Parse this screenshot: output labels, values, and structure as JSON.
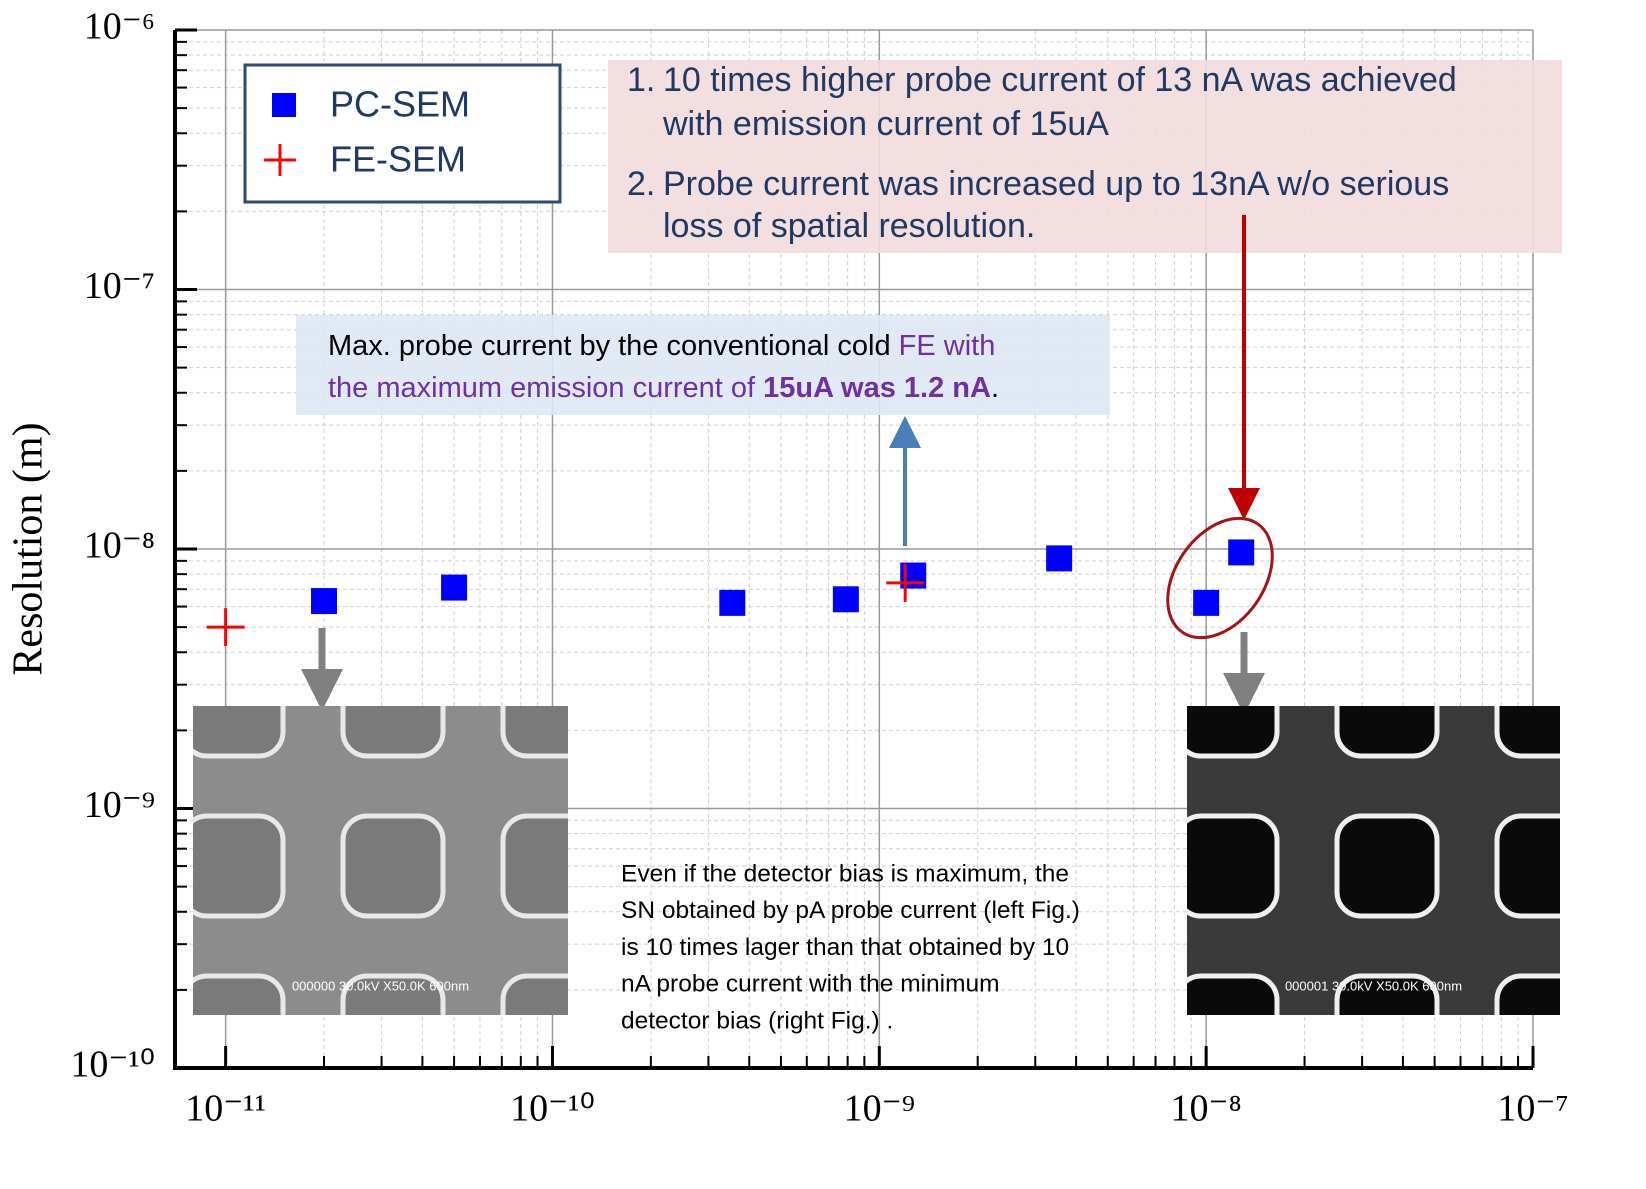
{
  "chart_data": {
    "type": "scatter",
    "y_label": "Resolution (m)",
    "log_x": true,
    "log_y": true,
    "grid": true,
    "minor_grid": true,
    "legend_position": "upper left",
    "xlim": [
      7e-12,
      1e-07
    ],
    "ylim": [
      1e-10,
      1e-06
    ],
    "xticks": [
      {
        "value": 1e-11,
        "label": "10⁻¹¹"
      },
      {
        "value": 1e-10,
        "label": "10⁻¹⁰"
      },
      {
        "value": 1e-09,
        "label": "10⁻⁹"
      },
      {
        "value": 1e-08,
        "label": "10⁻⁸"
      },
      {
        "value": 1e-07,
        "label": "10⁻⁷"
      }
    ],
    "yticks": [
      {
        "value": 1e-10,
        "label": "10⁻¹⁰"
      },
      {
        "value": 1e-09,
        "label": "10⁻⁹"
      },
      {
        "value": 1e-08,
        "label": "10⁻⁸"
      },
      {
        "value": 1e-07,
        "label": "10⁻⁷"
      },
      {
        "value": 1e-06,
        "label": "10⁻⁶"
      }
    ],
    "series": [
      {
        "name": "PC-SEM",
        "color": "#0000ff",
        "marker": "square",
        "x": [
          2e-11,
          5e-11,
          3.55e-10,
          7.9e-10,
          1.27e-09,
          3.55e-09,
          1e-08,
          1.28e-08
        ],
        "values": [
          6.3e-09,
          7.1e-09,
          6.2e-09,
          6.4e-09,
          7.9e-09,
          9.2e-09,
          6.2e-09,
          9.7e-09
        ]
      },
      {
        "name": "FE-SEM",
        "color": "#ff0000",
        "marker": "plus",
        "x": [
          1e-11,
          1.2e-09
        ],
        "values": [
          5e-09,
          7.4e-09
        ]
      }
    ]
  },
  "annotations": {
    "achievements": {
      "items": [
        {
          "number": "1.",
          "lines": [
            "10 times higher probe current of 13 nA was achieved",
            "with emission current of 15uA"
          ]
        },
        {
          "number": "2.",
          "lines": [
            "Probe current was increased up to 13nA w/o serious",
            "loss of spatial resolution."
          ]
        }
      ]
    },
    "conventional": {
      "lines": [
        [
          {
            "text": "Max. probe current by the conventional cold ",
            "color": "#000000"
          },
          {
            "text": "FE with",
            "color": "#7030a0"
          }
        ],
        [
          {
            "text": "the maximum emission current of ",
            "color": "#7030a0"
          },
          {
            "text": "15uA was 1.2 nA",
            "color": "#7030a0",
            "bold": true
          },
          {
            "text": ".",
            "color": "#000000"
          }
        ]
      ]
    },
    "note": {
      "lines": [
        "Even if the detector bias is maximum, the",
        "SN obtained by pA probe current (left Fig.)",
        "is 10 times lager than that obtained by 10",
        "nA probe current with the minimum",
        "detector bias (right Fig.) ."
      ]
    },
    "images": [
      {
        "caption": "000000 30.0kV X50.0K 600nm"
      },
      {
        "caption": "000001 30.0kV X50.0K 600nm"
      }
    ]
  }
}
